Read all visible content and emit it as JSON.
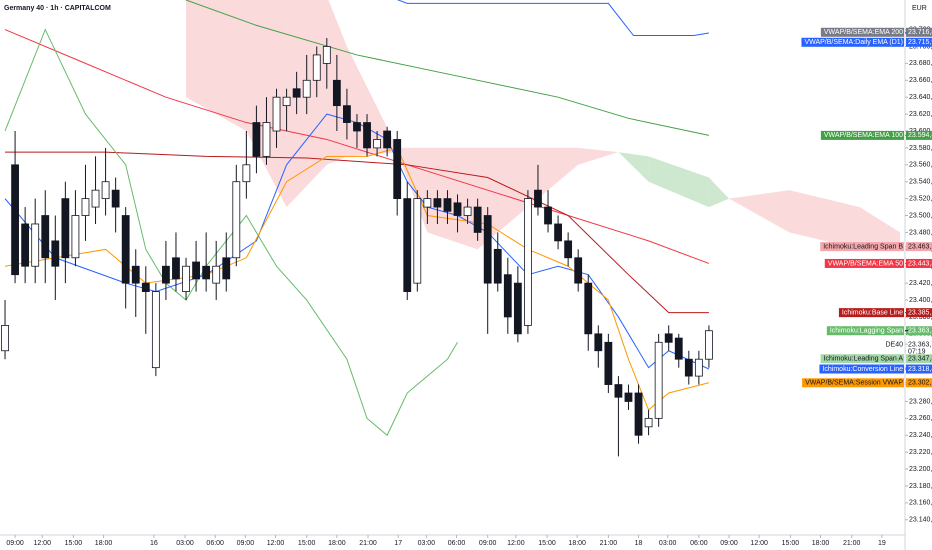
{
  "chart_data": {
    "type": "candlestick",
    "title": "Germany 40 · 1h · CAPITALCOM",
    "currency": "EUR",
    "xlim": [
      -0.5,
      89.5
    ],
    "xticks": [
      {
        "value": 1,
        "label": "09:00"
      },
      {
        "value": 3.7,
        "label": "12:00"
      },
      {
        "value": 6.8,
        "label": "15:00"
      },
      {
        "value": 9.8,
        "label": "18:00"
      },
      {
        "value": 14.8,
        "label": "16"
      },
      {
        "value": 17.9,
        "label": "03:00"
      },
      {
        "value": 20.9,
        "label": "06:00"
      },
      {
        "value": 23.9,
        "label": "09:00"
      },
      {
        "value": 26.9,
        "label": "12:00"
      },
      {
        "value": 30,
        "label": "15:00"
      },
      {
        "value": 33,
        "label": "18:00"
      },
      {
        "value": 36.1,
        "label": "21:00"
      },
      {
        "value": 39.1,
        "label": "17"
      },
      {
        "value": 41.9,
        "label": "03:00"
      },
      {
        "value": 44.9,
        "label": "06:00"
      },
      {
        "value": 48,
        "label": "09:00"
      },
      {
        "value": 50.8,
        "label": "12:00"
      },
      {
        "value": 53.9,
        "label": "15:00"
      },
      {
        "value": 56.9,
        "label": "18:00"
      },
      {
        "value": 60,
        "label": "21:00"
      },
      {
        "value": 63,
        "label": "18"
      },
      {
        "value": 65.9,
        "label": "03:00"
      },
      {
        "value": 69,
        "label": "06:00"
      },
      {
        "value": 72,
        "label": "09:00"
      },
      {
        "value": 75,
        "label": "12:00"
      },
      {
        "value": 78.1,
        "label": "15:00"
      },
      {
        "value": 81.1,
        "label": "18:00"
      },
      {
        "value": 84.2,
        "label": "21:00"
      },
      {
        "value": 87.2,
        "label": "19"
      }
    ],
    "ylim": [
      23122,
      23755
    ],
    "yticks": [
      {
        "value": 23140,
        "label": "23.140,0"
      },
      {
        "value": 23160,
        "label": "23.160,0"
      },
      {
        "value": 23180,
        "label": "23.180,0"
      },
      {
        "value": 23200,
        "label": "23.200,0"
      },
      {
        "value": 23220,
        "label": "23.220,0"
      },
      {
        "value": 23240,
        "label": "23.240,0"
      },
      {
        "value": 23260,
        "label": "23.260,0"
      },
      {
        "value": 23280,
        "label": "23.280,0"
      },
      {
        "value": 23300,
        "label": "23.300,0"
      },
      {
        "value": 23320,
        "label": "23.320,0"
      },
      {
        "value": 23340,
        "label": "23.340,0"
      },
      {
        "value": 23360,
        "label": "23.360,0"
      },
      {
        "value": 23380,
        "label": "23.380,0"
      },
      {
        "value": 23400,
        "label": "23.400,0"
      },
      {
        "value": 23420,
        "label": "23.420,0"
      },
      {
        "value": 23440,
        "label": "23.440,0"
      },
      {
        "value": 23460,
        "label": "23.460,0"
      },
      {
        "value": 23480,
        "label": "23.480,0"
      },
      {
        "value": 23500,
        "label": "23.500,0"
      },
      {
        "value": 23520,
        "label": "23.520,0"
      },
      {
        "value": 23540,
        "label": "23.540,0"
      },
      {
        "value": 23560,
        "label": "23.560,0"
      },
      {
        "value": 23580,
        "label": "23.580,0"
      },
      {
        "value": 23600,
        "label": "23.600,0"
      },
      {
        "value": 23620,
        "label": "23.620,0"
      },
      {
        "value": 23640,
        "label": "23.640,0"
      },
      {
        "value": 23660,
        "label": "23.660,0"
      },
      {
        "value": 23680,
        "label": "23.680,0"
      },
      {
        "value": 23700,
        "label": "23.700,0"
      },
      {
        "value": 23720,
        "label": "23.720,0"
      }
    ],
    "up_color": "#ffffff",
    "down_color": "#131722",
    "open": [
      23340,
      23560,
      23490,
      23440,
      23500,
      23470,
      23520,
      23450,
      23500,
      23510,
      23520,
      23530,
      23500,
      23440,
      23420,
      23320,
      23440,
      23450,
      23410,
      23445,
      23440,
      23420,
      23450,
      23450,
      23540,
      23610,
      23570,
      23600,
      23630,
      23650,
      23640,
      23660,
      23680,
      23660,
      23630,
      23610,
      23610,
      23580,
      23600,
      23590,
      23520,
      23420,
      23510,
      23520,
      23520,
      23515,
      23500,
      23510,
      23500,
      23460,
      23430,
      23420,
      23370,
      23530,
      23510,
      23490,
      23470,
      23450,
      23420,
      23360,
      23350,
      23300,
      23290,
      23290,
      23250,
      23260,
      23360,
      23355,
      23330,
      23310,
      23330
    ],
    "high": [
      23400,
      23600,
      23510,
      23520,
      23530,
      23500,
      23540,
      23530,
      23560,
      23570,
      23580,
      23545,
      23510,
      23460,
      23440,
      23420,
      23470,
      23480,
      23450,
      23470,
      23480,
      23470,
      23480,
      23560,
      23600,
      23630,
      23640,
      23650,
      23650,
      23670,
      23690,
      23700,
      23710,
      23690,
      23650,
      23620,
      23620,
      23600,
      23605,
      23600,
      23540,
      23530,
      23530,
      23530,
      23530,
      23525,
      23520,
      23520,
      23510,
      23480,
      23450,
      23440,
      23530,
      23560,
      23530,
      23500,
      23480,
      23460,
      23430,
      23370,
      23360,
      23310,
      23300,
      23300,
      23270,
      23360,
      23370,
      23360,
      23340,
      23340,
      23370
    ],
    "low": [
      23330,
      23420,
      23420,
      23420,
      23420,
      23400,
      23420,
      23440,
      23470,
      23490,
      23500,
      23480,
      23390,
      23380,
      23360,
      23310,
      23400,
      23410,
      23400,
      23410,
      23410,
      23400,
      23410,
      23440,
      23520,
      23550,
      23560,
      23580,
      23600,
      23620,
      23620,
      23640,
      23650,
      23600,
      23590,
      23580,
      23570,
      23570,
      23570,
      23500,
      23400,
      23410,
      23490,
      23490,
      23490,
      23480,
      23490,
      23470,
      23360,
      23410,
      23360,
      23350,
      23360,
      23500,
      23480,
      23460,
      23440,
      23410,
      23340,
      23320,
      23290,
      23215,
      23270,
      23230,
      23240,
      23250,
      23340,
      23320,
      23300,
      23300,
      23320
    ],
    "close": [
      23370,
      23430,
      23440,
      23490,
      23450,
      23440,
      23450,
      23500,
      23520,
      23530,
      23540,
      23510,
      23420,
      23420,
      23410,
      23410,
      23420,
      23425,
      23440,
      23425,
      23425,
      23440,
      23425,
      23540,
      23560,
      23570,
      23610,
      23640,
      23640,
      23640,
      23660,
      23690,
      23700,
      23630,
      23610,
      23600,
      23580,
      23590,
      23580,
      23520,
      23410,
      23520,
      23520,
      23510,
      23505,
      23500,
      23510,
      23480,
      23420,
      23420,
      23380,
      23360,
      23520,
      23510,
      23490,
      23470,
      23450,
      23420,
      23360,
      23340,
      23300,
      23285,
      23280,
      23240,
      23260,
      23350,
      23350,
      23330,
      23310,
      23330,
      23363.7
    ],
    "cloud": {
      "x": [
        18,
        24,
        28,
        32,
        34,
        39,
        42,
        47,
        52,
        57,
        61,
        64,
        70,
        72,
        78,
        85,
        89
      ],
      "span_a": [
        23640,
        23600,
        23510,
        23560,
        23570,
        23575,
        23480,
        23460,
        23510,
        23560,
        23575,
        23570,
        23545,
        23520,
        23480,
        23460,
        23460
      ],
      "span_b": [
        23760,
        23760,
        23760,
        23760,
        23700,
        23580,
        23580,
        23580,
        23580,
        23580,
        23575,
        23540,
        23510,
        23520,
        23530,
        23510,
        23480
      ],
      "color_a": "#a5d6a7",
      "color_b": "#f8bbbf"
    },
    "series": [
      {
        "name": "VWAP/B/SEMA:EMA 200",
        "color": "#787b86",
        "value": 23716.8,
        "value_label": "23.716,8"
      },
      {
        "name": "VWAP/B/SEMA:Daily EMA (D1)",
        "color": "#2962ff",
        "x": [
          38,
          40,
          60,
          62.5,
          68.5,
          70
        ],
        "values": [
          23760,
          23751,
          23751,
          23713,
          23713,
          23715.9
        ],
        "value": 23715.9,
        "value_label": "23.715,9"
      },
      {
        "name": "VWAP/B/SEMA:EMA 100",
        "color": "#43a047",
        "x": [
          18,
          25,
          35,
          45,
          55,
          62,
          70
        ],
        "values": [
          23755,
          23725,
          23690,
          23665,
          23640,
          23615,
          23594.8
        ],
        "value": 23594.8,
        "value_label": "23.594,8"
      },
      {
        "name": "Ichimoku:Leading Span B",
        "color": "#f4a6aa",
        "value": 23463.2,
        "value_label": "23.463,2"
      },
      {
        "name": "VWAP/B/SEMA:EMA 50",
        "color": "#f23645",
        "x": [
          0,
          8,
          16,
          24,
          32,
          40,
          48,
          56,
          64,
          70
        ],
        "values": [
          23720,
          23680,
          23640,
          23610,
          23590,
          23560,
          23530,
          23500,
          23470,
          23443.3
        ],
        "value": 23443.3,
        "value_label": "23.443,3"
      },
      {
        "name": "Ichimoku:Base Line",
        "color": "#b71c1c",
        "x": [
          0,
          10,
          20,
          30,
          40,
          48,
          56,
          62,
          66,
          70
        ],
        "values": [
          23575,
          23575,
          23570,
          23568,
          23560,
          23545,
          23500,
          23430,
          23385.1,
          23385.1
        ],
        "value": 23385.1,
        "value_label": "23.385,1"
      },
      {
        "name": "Ichimoku:Lagging Span",
        "color": "#66bb6a",
        "x": [
          0,
          4,
          8,
          12,
          14,
          16,
          18,
          20,
          24,
          27,
          30,
          34,
          36,
          38,
          40,
          44,
          45
        ],
        "values": [
          23600,
          23720,
          23620,
          23560,
          23460,
          23420,
          23400,
          23440,
          23500,
          23440,
          23400,
          23330,
          23260,
          23240,
          23290,
          23330,
          23350
        ],
        "value": 23363.7,
        "value_label": "23.363,7"
      },
      {
        "name": "Ichimoku:Leading Span A",
        "color": "#a5d6a7",
        "value": 23347.8,
        "value_label": "23.347,8"
      },
      {
        "name": "Ichimoku:Conversion Line",
        "color": "#2962ff",
        "x": [
          0,
          5,
          12,
          15,
          20,
          25,
          28,
          32,
          35,
          38,
          40,
          42,
          45,
          48,
          52,
          55,
          58,
          61,
          64,
          66,
          70
        ],
        "values": [
          23520,
          23450,
          23420,
          23410,
          23430,
          23470,
          23560,
          23620,
          23610,
          23590,
          23540,
          23510,
          23500,
          23480,
          23430,
          23440,
          23430,
          23380,
          23320,
          23340,
          23318.4
        ],
        "value": 23318.4,
        "value_label": "23.318,4"
      },
      {
        "name": "VWAP/B/SEMA:Session VWAP",
        "color": "#ff9800",
        "x": [
          0,
          5,
          10,
          14,
          20,
          24,
          28,
          32,
          36,
          39,
          42,
          45,
          48,
          52,
          56,
          60,
          62,
          64,
          66,
          70
        ],
        "values": [
          23440,
          23450,
          23460,
          23420,
          23430,
          23450,
          23540,
          23570,
          23570,
          23580,
          23500,
          23495,
          23490,
          23460,
          23440,
          23400,
          23330,
          23270,
          23290,
          23302.1
        ],
        "value": 23302.1,
        "value_label": "23.302,1"
      }
    ],
    "last_price": {
      "name": "DE40",
      "value": 23363.7,
      "value_label": "23.363,7",
      "countdown": "07:19"
    }
  }
}
